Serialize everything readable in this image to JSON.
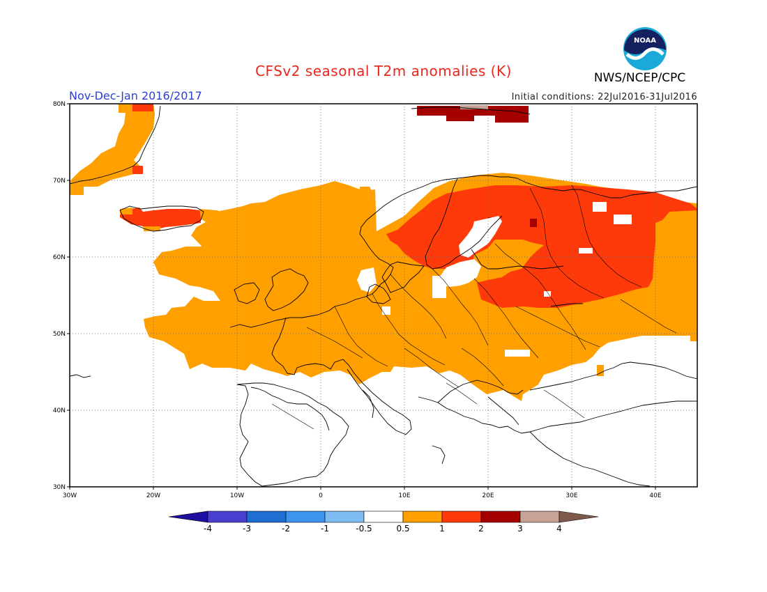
{
  "header": {
    "title": "CFSv2 seasonal T2m anomalies (K)",
    "period": "Nov-Dec-Jan 2016/2017",
    "initial_conditions": "Initial conditions: 22Jul2016-31Jul2016",
    "agency": "NWS/NCEP/CPC",
    "logo_text": "NOAA"
  },
  "map": {
    "region": "Europe",
    "lon_range": [
      -30,
      45
    ],
    "lat_range": [
      30,
      80
    ],
    "lat_labels": [
      "80N",
      "70N",
      "60N",
      "50N",
      "40N",
      "30N"
    ],
    "lon_labels": [
      "30W",
      "20W",
      "10W",
      "0",
      "10E",
      "20E",
      "30E",
      "40E"
    ],
    "anomaly_regions": [
      {
        "area": "Greenland coast",
        "category": "0.5 to 1"
      },
      {
        "area": "Greenland east coast",
        "category": "1 to 2"
      },
      {
        "area": "Iceland",
        "category": "1 to 2"
      },
      {
        "area": "Svalbard",
        "category": "2 to 3"
      },
      {
        "area": "Scandinavia and Finland",
        "category": "1 to 2"
      },
      {
        "area": "Western Russia and Baltic",
        "category": "1 to 2"
      },
      {
        "area": "Central and Western Europe",
        "category": "0.5 to 1"
      },
      {
        "area": "Eastern Russia",
        "category": "0.5 to 1"
      },
      {
        "area": "Mediterranean and Iberia",
        "category": "-0.5 to 0.5"
      }
    ]
  },
  "legend": {
    "tick_labels": [
      "-4",
      "-3",
      "-2",
      "-1",
      "-0.5",
      "0.5",
      "1",
      "2",
      "3",
      "4"
    ],
    "colors": [
      "#1e0fa0",
      "#4b3fd2",
      "#1f6fd2",
      "#3c94ec",
      "#7ebbf2",
      "#ffffff",
      "#ff9f00",
      "#ff3a0a",
      "#a50000",
      "#c8a296",
      "#7d5a4a"
    ]
  }
}
